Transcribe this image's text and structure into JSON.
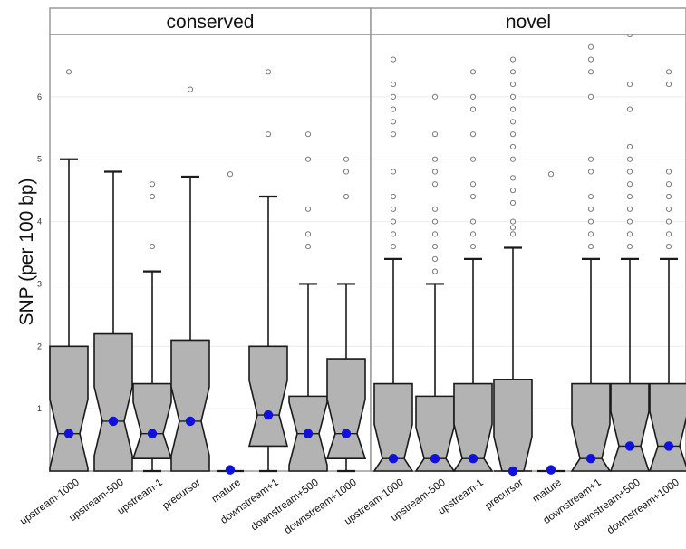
{
  "chart_data": {
    "type": "boxplot",
    "ylabel": "SNP (per 100 bp)",
    "ylim": [
      0,
      7
    ],
    "yticks": [
      "1",
      "2",
      "3",
      "4",
      "5",
      "6"
    ],
    "categories": [
      "upstream-1000",
      "upstream-500",
      "upstream-1",
      "precursor",
      "mature",
      "downstream+1",
      "downstream+500",
      "downstream+1000"
    ],
    "grid": true,
    "panels": [
      {
        "name": "conserved",
        "boxes": [
          {
            "category": "upstream-1000",
            "q1": 0,
            "median": 0.6,
            "q3": 2.0,
            "whisker_low": 0,
            "whisker_high": 5.0,
            "mean": 0.6,
            "outliers": [
              6.4
            ]
          },
          {
            "category": "upstream-500",
            "q1": 0,
            "median": 0.8,
            "q3": 2.2,
            "whisker_low": 0,
            "whisker_high": 4.8,
            "mean": 0.8,
            "outliers": []
          },
          {
            "category": "upstream-1",
            "q1": 0.2,
            "median": 0.6,
            "q3": 1.4,
            "whisker_low": 0,
            "whisker_high": 3.2,
            "mean": 0.6,
            "outliers": [
              3.6,
              4.4,
              4.6
            ]
          },
          {
            "category": "precursor",
            "q1": 0,
            "median": 0.8,
            "q3": 2.1,
            "whisker_low": 0,
            "whisker_high": 4.72,
            "mean": 0.8,
            "outliers": [
              6.12
            ]
          },
          {
            "category": "mature",
            "q1": 0,
            "median": 0,
            "q3": 0,
            "whisker_low": 0,
            "whisker_high": 0,
            "mean": 0.02,
            "outliers": [
              4.76
            ]
          },
          {
            "category": "downstream+1",
            "q1": 0.4,
            "median": 0.9,
            "q3": 2.0,
            "whisker_low": 0,
            "whisker_high": 4.4,
            "mean": 0.9,
            "outliers": [
              5.4,
              6.4
            ]
          },
          {
            "category": "downstream+500",
            "q1": 0,
            "median": 0.6,
            "q3": 1.2,
            "whisker_low": 0,
            "whisker_high": 3.0,
            "mean": 0.6,
            "outliers": [
              3.6,
              3.8,
              4.2,
              5.0,
              5.4
            ]
          },
          {
            "category": "downstream+1000",
            "q1": 0.2,
            "median": 0.6,
            "q3": 1.8,
            "whisker_low": 0,
            "whisker_high": 3.0,
            "mean": 0.6,
            "outliers": [
              4.4,
              4.8,
              5.0
            ]
          }
        ]
      },
      {
        "name": "novel",
        "boxes": [
          {
            "category": "upstream-1000",
            "q1": 0,
            "median": 0.2,
            "q3": 1.4,
            "whisker_low": 0,
            "whisker_high": 3.4,
            "mean": 0.2,
            "outliers": [
              3.6,
              3.8,
              4.0,
              4.2,
              4.4,
              4.8,
              5.4,
              5.6,
              5.8,
              6.0,
              6.2,
              6.6
            ]
          },
          {
            "category": "upstream-500",
            "q1": 0,
            "median": 0.2,
            "q3": 1.2,
            "whisker_low": 0,
            "whisker_high": 3.0,
            "mean": 0.2,
            "outliers": [
              3.2,
              3.4,
              3.6,
              3.8,
              4.0,
              4.2,
              4.6,
              4.8,
              5.0,
              5.4,
              6.0
            ]
          },
          {
            "category": "upstream-1",
            "q1": 0,
            "median": 0.2,
            "q3": 1.4,
            "whisker_low": 0,
            "whisker_high": 3.4,
            "mean": 0.2,
            "outliers": [
              3.6,
              3.8,
              4.0,
              4.4,
              4.6,
              5.0,
              5.4,
              5.8,
              6.0,
              6.4
            ]
          },
          {
            "category": "precursor",
            "q1": 0,
            "median": 0,
            "q3": 1.47,
            "whisker_low": 0,
            "whisker_high": 3.58,
            "mean": 0,
            "outliers": [
              3.8,
              3.9,
              4.0,
              4.3,
              4.5,
              4.7,
              5.0,
              5.2,
              5.4,
              5.6,
              5.8,
              6.0,
              6.2,
              6.4,
              6.6
            ]
          },
          {
            "category": "mature",
            "q1": 0,
            "median": 0,
            "q3": 0,
            "whisker_low": 0,
            "whisker_high": 0,
            "mean": 0.02,
            "outliers": [
              4.76
            ]
          },
          {
            "category": "downstream+1",
            "q1": 0,
            "median": 0.2,
            "q3": 1.4,
            "whisker_low": 0,
            "whisker_high": 3.4,
            "mean": 0.2,
            "outliers": [
              3.6,
              3.8,
              4.0,
              4.2,
              4.4,
              4.8,
              5.0,
              6.0,
              6.4,
              6.6,
              6.8
            ]
          },
          {
            "category": "downstream+500",
            "q1": 0,
            "median": 0.4,
            "q3": 1.4,
            "whisker_low": 0,
            "whisker_high": 3.4,
            "mean": 0.4,
            "outliers": [
              3.6,
              3.8,
              4.0,
              4.2,
              4.4,
              4.6,
              4.8,
              5.0,
              5.2,
              5.8,
              6.2,
              7.0
            ]
          },
          {
            "category": "downstream+1000",
            "q1": 0,
            "median": 0.4,
            "q3": 1.4,
            "whisker_low": 0,
            "whisker_high": 3.4,
            "mean": 0.4,
            "outliers": [
              3.6,
              3.8,
              4.0,
              4.2,
              4.4,
              4.6,
              4.8,
              6.2,
              6.4
            ]
          }
        ]
      }
    ]
  }
}
